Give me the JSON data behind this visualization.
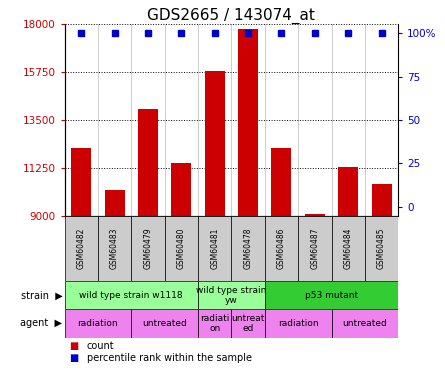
{
  "title": "GDS2665 / 143074_at",
  "samples": [
    "GSM60482",
    "GSM60483",
    "GSM60479",
    "GSM60480",
    "GSM60481",
    "GSM60478",
    "GSM60486",
    "GSM60487",
    "GSM60484",
    "GSM60485"
  ],
  "counts": [
    12200,
    10200,
    14000,
    11500,
    15800,
    17800,
    12200,
    9100,
    11300,
    10500
  ],
  "percentiles": [
    100,
    100,
    100,
    100,
    100,
    100,
    100,
    100,
    100,
    100
  ],
  "ylim": [
    9000,
    18000
  ],
  "yticks": [
    9000,
    11250,
    13500,
    15750,
    18000
  ],
  "ytick_labels": [
    "9000",
    "11250",
    "13500",
    "15750",
    "18000"
  ],
  "y2ticks": [
    0,
    25,
    50,
    75,
    100
  ],
  "y2tick_labels": [
    "0",
    "25",
    "50",
    "75",
    "100%"
  ],
  "bar_color": "#cc0000",
  "dot_color": "#0000cc",
  "bar_width": 0.6,
  "strain_groups": [
    {
      "label": "wild type strain w1118",
      "start": 0,
      "end": 4,
      "color": "#99ff99"
    },
    {
      "label": "wild type strain\nyw",
      "start": 4,
      "end": 6,
      "color": "#99ff99"
    },
    {
      "label": "p53 mutant",
      "start": 6,
      "end": 10,
      "color": "#33cc33"
    }
  ],
  "agent_groups": [
    {
      "label": "radiation",
      "start": 0,
      "end": 2,
      "color": "#ee82ee"
    },
    {
      "label": "untreated",
      "start": 2,
      "end": 4,
      "color": "#ee82ee"
    },
    {
      "label": "radiati\non",
      "start": 4,
      "end": 5,
      "color": "#ee82ee"
    },
    {
      "label": "untreat\ned",
      "start": 5,
      "end": 6,
      "color": "#ee82ee"
    },
    {
      "label": "radiation",
      "start": 6,
      "end": 8,
      "color": "#ee82ee"
    },
    {
      "label": "untreated",
      "start": 8,
      "end": 10,
      "color": "#ee82ee"
    }
  ],
  "legend_count_color": "#cc0000",
  "legend_pct_color": "#0000cc",
  "title_fontsize": 11,
  "tick_fontsize": 7.5,
  "sample_fontsize": 5.5,
  "annotation_fontsize": 7,
  "label_fontsize": 6.5
}
